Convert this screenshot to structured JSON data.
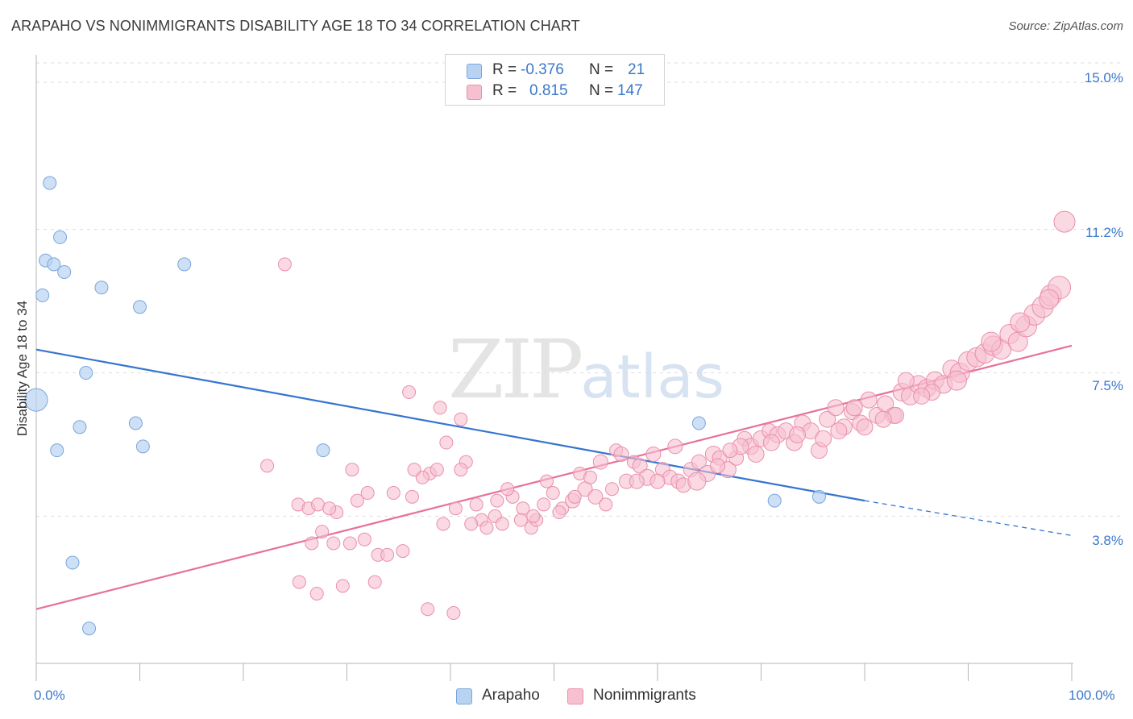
{
  "title": "ARAPAHO VS NONIMMIGRANTS DISABILITY AGE 18 TO 34 CORRELATION CHART",
  "source": "Source: ZipAtlas.com",
  "watermark": {
    "zip": "ZIP",
    "atlas": "atlas"
  },
  "colors": {
    "arapaho_fill": "#b8d3f2",
    "arapaho_stroke": "#7aa6dc",
    "arapaho_line": "#3574d0",
    "nonimm_fill": "#f7c0d1",
    "nonimm_stroke": "#e98fad",
    "nonimm_line": "#e8709a",
    "tick_text": "#3b78c9",
    "grid": "#dddddd"
  },
  "legend": {
    "rows": [
      {
        "r_label": "R =",
        "r_value": "-0.376",
        "n_label": "N =",
        "n_value": "21"
      },
      {
        "r_label": "R =",
        "r_value": "0.815",
        "n_label": "N =",
        "n_value": "147"
      }
    ]
  },
  "bottom_legend": {
    "arapaho": "Arapaho",
    "nonimmigrants": "Nonimmigrants"
  },
  "chart_data": {
    "type": "scatter",
    "title": "ARAPAHO VS NONIMMIGRANTS DISABILITY AGE 18 TO 34 CORRELATION CHART",
    "xlabel": "",
    "ylabel": "Disability Age 18 to 34",
    "xlim": [
      0,
      100
    ],
    "ylim": [
      0.0,
      15.5
    ],
    "x_tick_labels": [
      "0.0%",
      "100.0%"
    ],
    "y_ticks": [
      3.8,
      7.5,
      11.2,
      15.0
    ],
    "y_tick_labels": [
      "3.8%",
      "7.5%",
      "11.2%",
      "15.0%"
    ],
    "grid": true,
    "series": [
      {
        "name": "Arapaho",
        "r": -0.376,
        "n": 21,
        "trend": {
          "x0": 0,
          "y0": 8.1,
          "x1": 80,
          "y1": 4.2,
          "dashed_to_x": 100,
          "dashed_to_y": 3.3
        },
        "points": [
          [
            0.0,
            6.8,
            14
          ],
          [
            1.3,
            12.4,
            8
          ],
          [
            2.3,
            11.0,
            8
          ],
          [
            0.9,
            10.4,
            8
          ],
          [
            1.7,
            10.3,
            8
          ],
          [
            2.7,
            10.1,
            8
          ],
          [
            0.6,
            9.5,
            8
          ],
          [
            6.3,
            9.7,
            8
          ],
          [
            10.0,
            9.2,
            8
          ],
          [
            14.3,
            10.3,
            8
          ],
          [
            4.8,
            7.5,
            8
          ],
          [
            4.2,
            6.1,
            8
          ],
          [
            9.6,
            6.2,
            8
          ],
          [
            10.3,
            5.6,
            8
          ],
          [
            2.0,
            5.5,
            8
          ],
          [
            27.7,
            5.5,
            8
          ],
          [
            3.5,
            2.6,
            8
          ],
          [
            5.1,
            0.9,
            8
          ],
          [
            64.0,
            6.2,
            8
          ],
          [
            71.3,
            4.2,
            8
          ],
          [
            75.6,
            4.3,
            8
          ]
        ]
      },
      {
        "name": "Nonimmigrants",
        "r": 0.815,
        "n": 147,
        "trend": {
          "x0": 0,
          "y0": 1.4,
          "x1": 100,
          "y1": 8.2
        },
        "points": [
          [
            24.0,
            10.3,
            8
          ],
          [
            22.3,
            5.1,
            8
          ],
          [
            36.0,
            7.0,
            8
          ],
          [
            39.0,
            6.6,
            8
          ],
          [
            41.0,
            6.3,
            8
          ],
          [
            39.6,
            5.7,
            8
          ],
          [
            41.5,
            5.2,
            8
          ],
          [
            38.0,
            4.9,
            8
          ],
          [
            37.3,
            4.8,
            8
          ],
          [
            41.0,
            5.0,
            8
          ],
          [
            30.5,
            5.0,
            8
          ],
          [
            32.7,
            2.1,
            8
          ],
          [
            36.3,
            4.3,
            8
          ],
          [
            31.0,
            4.2,
            8
          ],
          [
            25.3,
            4.1,
            8
          ],
          [
            26.3,
            4.0,
            8
          ],
          [
            27.2,
            4.1,
            8
          ],
          [
            29.0,
            3.9,
            8
          ],
          [
            31.7,
            3.2,
            8
          ],
          [
            26.6,
            3.1,
            8
          ],
          [
            28.7,
            3.1,
            8
          ],
          [
            33.0,
            2.8,
            8
          ],
          [
            33.9,
            2.8,
            8
          ],
          [
            35.4,
            2.9,
            8
          ],
          [
            25.4,
            2.1,
            8
          ],
          [
            27.1,
            1.8,
            8
          ],
          [
            29.6,
            2.0,
            8
          ],
          [
            37.8,
            1.4,
            8
          ],
          [
            40.3,
            1.3,
            8
          ],
          [
            39.3,
            3.6,
            8
          ],
          [
            42.5,
            4.1,
            8
          ],
          [
            43.0,
            3.7,
            8
          ],
          [
            44.3,
            3.8,
            8
          ],
          [
            44.5,
            4.2,
            8
          ],
          [
            46.0,
            4.3,
            8
          ],
          [
            47.0,
            4.0,
            8
          ],
          [
            47.8,
            3.5,
            8
          ],
          [
            46.8,
            3.7,
            8
          ],
          [
            48.3,
            3.7,
            8
          ],
          [
            49.3,
            4.7,
            8
          ],
          [
            49.9,
            4.4,
            8
          ],
          [
            50.8,
            4.0,
            8
          ],
          [
            51.8,
            4.2,
            9
          ],
          [
            52.5,
            4.9,
            8
          ],
          [
            53.0,
            4.5,
            9
          ],
          [
            54.0,
            4.3,
            9
          ],
          [
            55.0,
            4.1,
            8
          ],
          [
            55.6,
            4.5,
            8
          ],
          [
            56.0,
            5.5,
            8
          ],
          [
            57.0,
            4.7,
            9
          ],
          [
            57.7,
            5.2,
            8
          ],
          [
            58.3,
            5.1,
            9
          ],
          [
            59.0,
            4.8,
            10
          ],
          [
            59.6,
            5.4,
            9
          ],
          [
            60.5,
            5.0,
            9
          ],
          [
            61.2,
            4.8,
            9
          ],
          [
            62.0,
            4.7,
            9
          ],
          [
            62.5,
            4.6,
            9
          ],
          [
            63.2,
            5.0,
            9
          ],
          [
            64.0,
            5.2,
            9
          ],
          [
            64.8,
            4.9,
            10
          ],
          [
            65.4,
            5.4,
            10
          ],
          [
            66.0,
            5.3,
            9
          ],
          [
            66.8,
            5.0,
            10
          ],
          [
            67.6,
            5.3,
            9
          ],
          [
            68.4,
            5.8,
            9
          ],
          [
            69.0,
            5.6,
            10
          ],
          [
            70.0,
            5.8,
            10
          ],
          [
            70.8,
            6.0,
            9
          ],
          [
            71.6,
            5.9,
            10
          ],
          [
            72.4,
            6.0,
            10
          ],
          [
            73.2,
            5.7,
            10
          ],
          [
            74.0,
            6.2,
            10
          ],
          [
            74.8,
            6.0,
            10
          ],
          [
            75.6,
            5.5,
            10
          ],
          [
            76.4,
            6.3,
            10
          ],
          [
            77.2,
            6.6,
            10
          ],
          [
            78.0,
            6.1,
            10
          ],
          [
            78.8,
            6.5,
            10
          ],
          [
            79.6,
            6.2,
            10
          ],
          [
            80.4,
            6.8,
            10
          ],
          [
            81.2,
            6.4,
            10
          ],
          [
            82.0,
            6.7,
            10
          ],
          [
            82.8,
            6.4,
            10
          ],
          [
            83.6,
            7.0,
            11
          ],
          [
            84.4,
            6.9,
            11
          ],
          [
            85.2,
            7.2,
            11
          ],
          [
            86.0,
            7.1,
            11
          ],
          [
            86.8,
            7.3,
            11
          ],
          [
            87.6,
            7.2,
            11
          ],
          [
            88.4,
            7.6,
            11
          ],
          [
            89.2,
            7.5,
            12
          ],
          [
            90.0,
            7.8,
            12
          ],
          [
            90.8,
            7.9,
            12
          ],
          [
            91.6,
            8.0,
            12
          ],
          [
            92.4,
            8.2,
            12
          ],
          [
            93.2,
            8.1,
            12
          ],
          [
            94.0,
            8.5,
            12
          ],
          [
            94.8,
            8.3,
            12
          ],
          [
            95.6,
            8.7,
            13
          ],
          [
            96.4,
            9.0,
            13
          ],
          [
            97.2,
            9.2,
            13
          ],
          [
            98.0,
            9.5,
            13
          ],
          [
            98.8,
            9.7,
            14
          ],
          [
            99.3,
            11.4,
            13
          ],
          [
            84.0,
            7.3,
            10
          ],
          [
            86.5,
            7.0,
            10
          ],
          [
            88.9,
            7.3,
            12
          ],
          [
            92.2,
            8.3,
            12
          ],
          [
            95.0,
            8.8,
            12
          ],
          [
            97.8,
            9.4,
            12
          ],
          [
            85.5,
            6.9,
            10
          ],
          [
            83.0,
            6.4,
            10
          ],
          [
            80.0,
            6.1,
            10
          ],
          [
            81.8,
            6.3,
            10
          ],
          [
            79.0,
            6.6,
            10
          ],
          [
            77.5,
            6.0,
            10
          ],
          [
            76.0,
            5.8,
            10
          ],
          [
            73.5,
            5.9,
            10
          ],
          [
            71.0,
            5.7,
            10
          ],
          [
            69.5,
            5.4,
            10
          ],
          [
            68.0,
            5.6,
            10
          ],
          [
            67.0,
            5.5,
            9
          ],
          [
            65.8,
            5.1,
            9
          ],
          [
            63.8,
            4.7,
            11
          ],
          [
            61.7,
            5.6,
            9
          ],
          [
            60.0,
            4.7,
            9
          ],
          [
            58.0,
            4.7,
            9
          ],
          [
            56.5,
            5.4,
            9
          ],
          [
            54.5,
            5.2,
            9
          ],
          [
            53.5,
            4.8,
            8
          ],
          [
            52.0,
            4.3,
            8
          ],
          [
            50.5,
            3.9,
            8
          ],
          [
            49.0,
            4.1,
            8
          ],
          [
            48.0,
            3.8,
            8
          ],
          [
            45.5,
            4.5,
            8
          ],
          [
            45.0,
            3.6,
            8
          ],
          [
            43.5,
            3.5,
            8
          ],
          [
            42.0,
            3.6,
            8
          ],
          [
            40.5,
            4.0,
            8
          ],
          [
            38.7,
            5.0,
            8
          ],
          [
            36.5,
            5.0,
            8
          ],
          [
            34.5,
            4.4,
            8
          ],
          [
            32.0,
            4.4,
            8
          ],
          [
            30.3,
            3.1,
            8
          ],
          [
            28.3,
            4.0,
            8
          ],
          [
            27.6,
            3.4,
            8
          ]
        ]
      }
    ]
  }
}
